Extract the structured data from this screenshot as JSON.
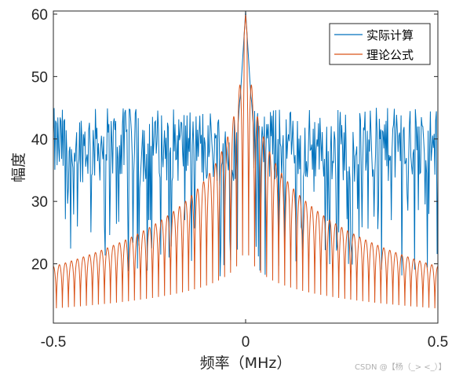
{
  "chart_data": {
    "type": "line",
    "title": "",
    "xlabel": "频率（MHz）",
    "ylabel": "幅度",
    "xlim": [
      -0.5,
      0.5
    ],
    "ylim": [
      10.5,
      60.5
    ],
    "x_ticks": [
      -0.5,
      0,
      0.5
    ],
    "x_tick_labels": [
      "-0.5",
      "0",
      "0.5"
    ],
    "y_ticks": [
      20,
      30,
      40,
      50,
      60
    ],
    "y_tick_labels": [
      "20",
      "30",
      "40",
      "50",
      "60"
    ],
    "grid": false,
    "legend_position": "top-right",
    "series": [
      {
        "name": "实际计算",
        "color": "#0072BD",
        "description_values": {
          "sample_count": 512,
          "noise_floor_mean": 39,
          "noise_floor_range": [
            17,
            46
          ],
          "peak": {
            "x": 0,
            "y": 60.5
          }
        }
      },
      {
        "name": "理论公式",
        "color": "#D95319",
        "description_values": {
          "peak": {
            "x": 0,
            "y": 60
          },
          "envelope_at_edge": {
            "x": 0.5,
            "y": 16
          },
          "envelope_at_0.25": {
            "x": 0.25,
            "y": 22
          },
          "envelope_at_0.1": {
            "x": 0.1,
            "y": 30
          },
          "envelope_at_0.02": {
            "x": 0.02,
            "y": 44
          },
          "null_count_per_side": 64
        }
      }
    ]
  },
  "watermark": "CSDN @【杨（_> <_）】"
}
